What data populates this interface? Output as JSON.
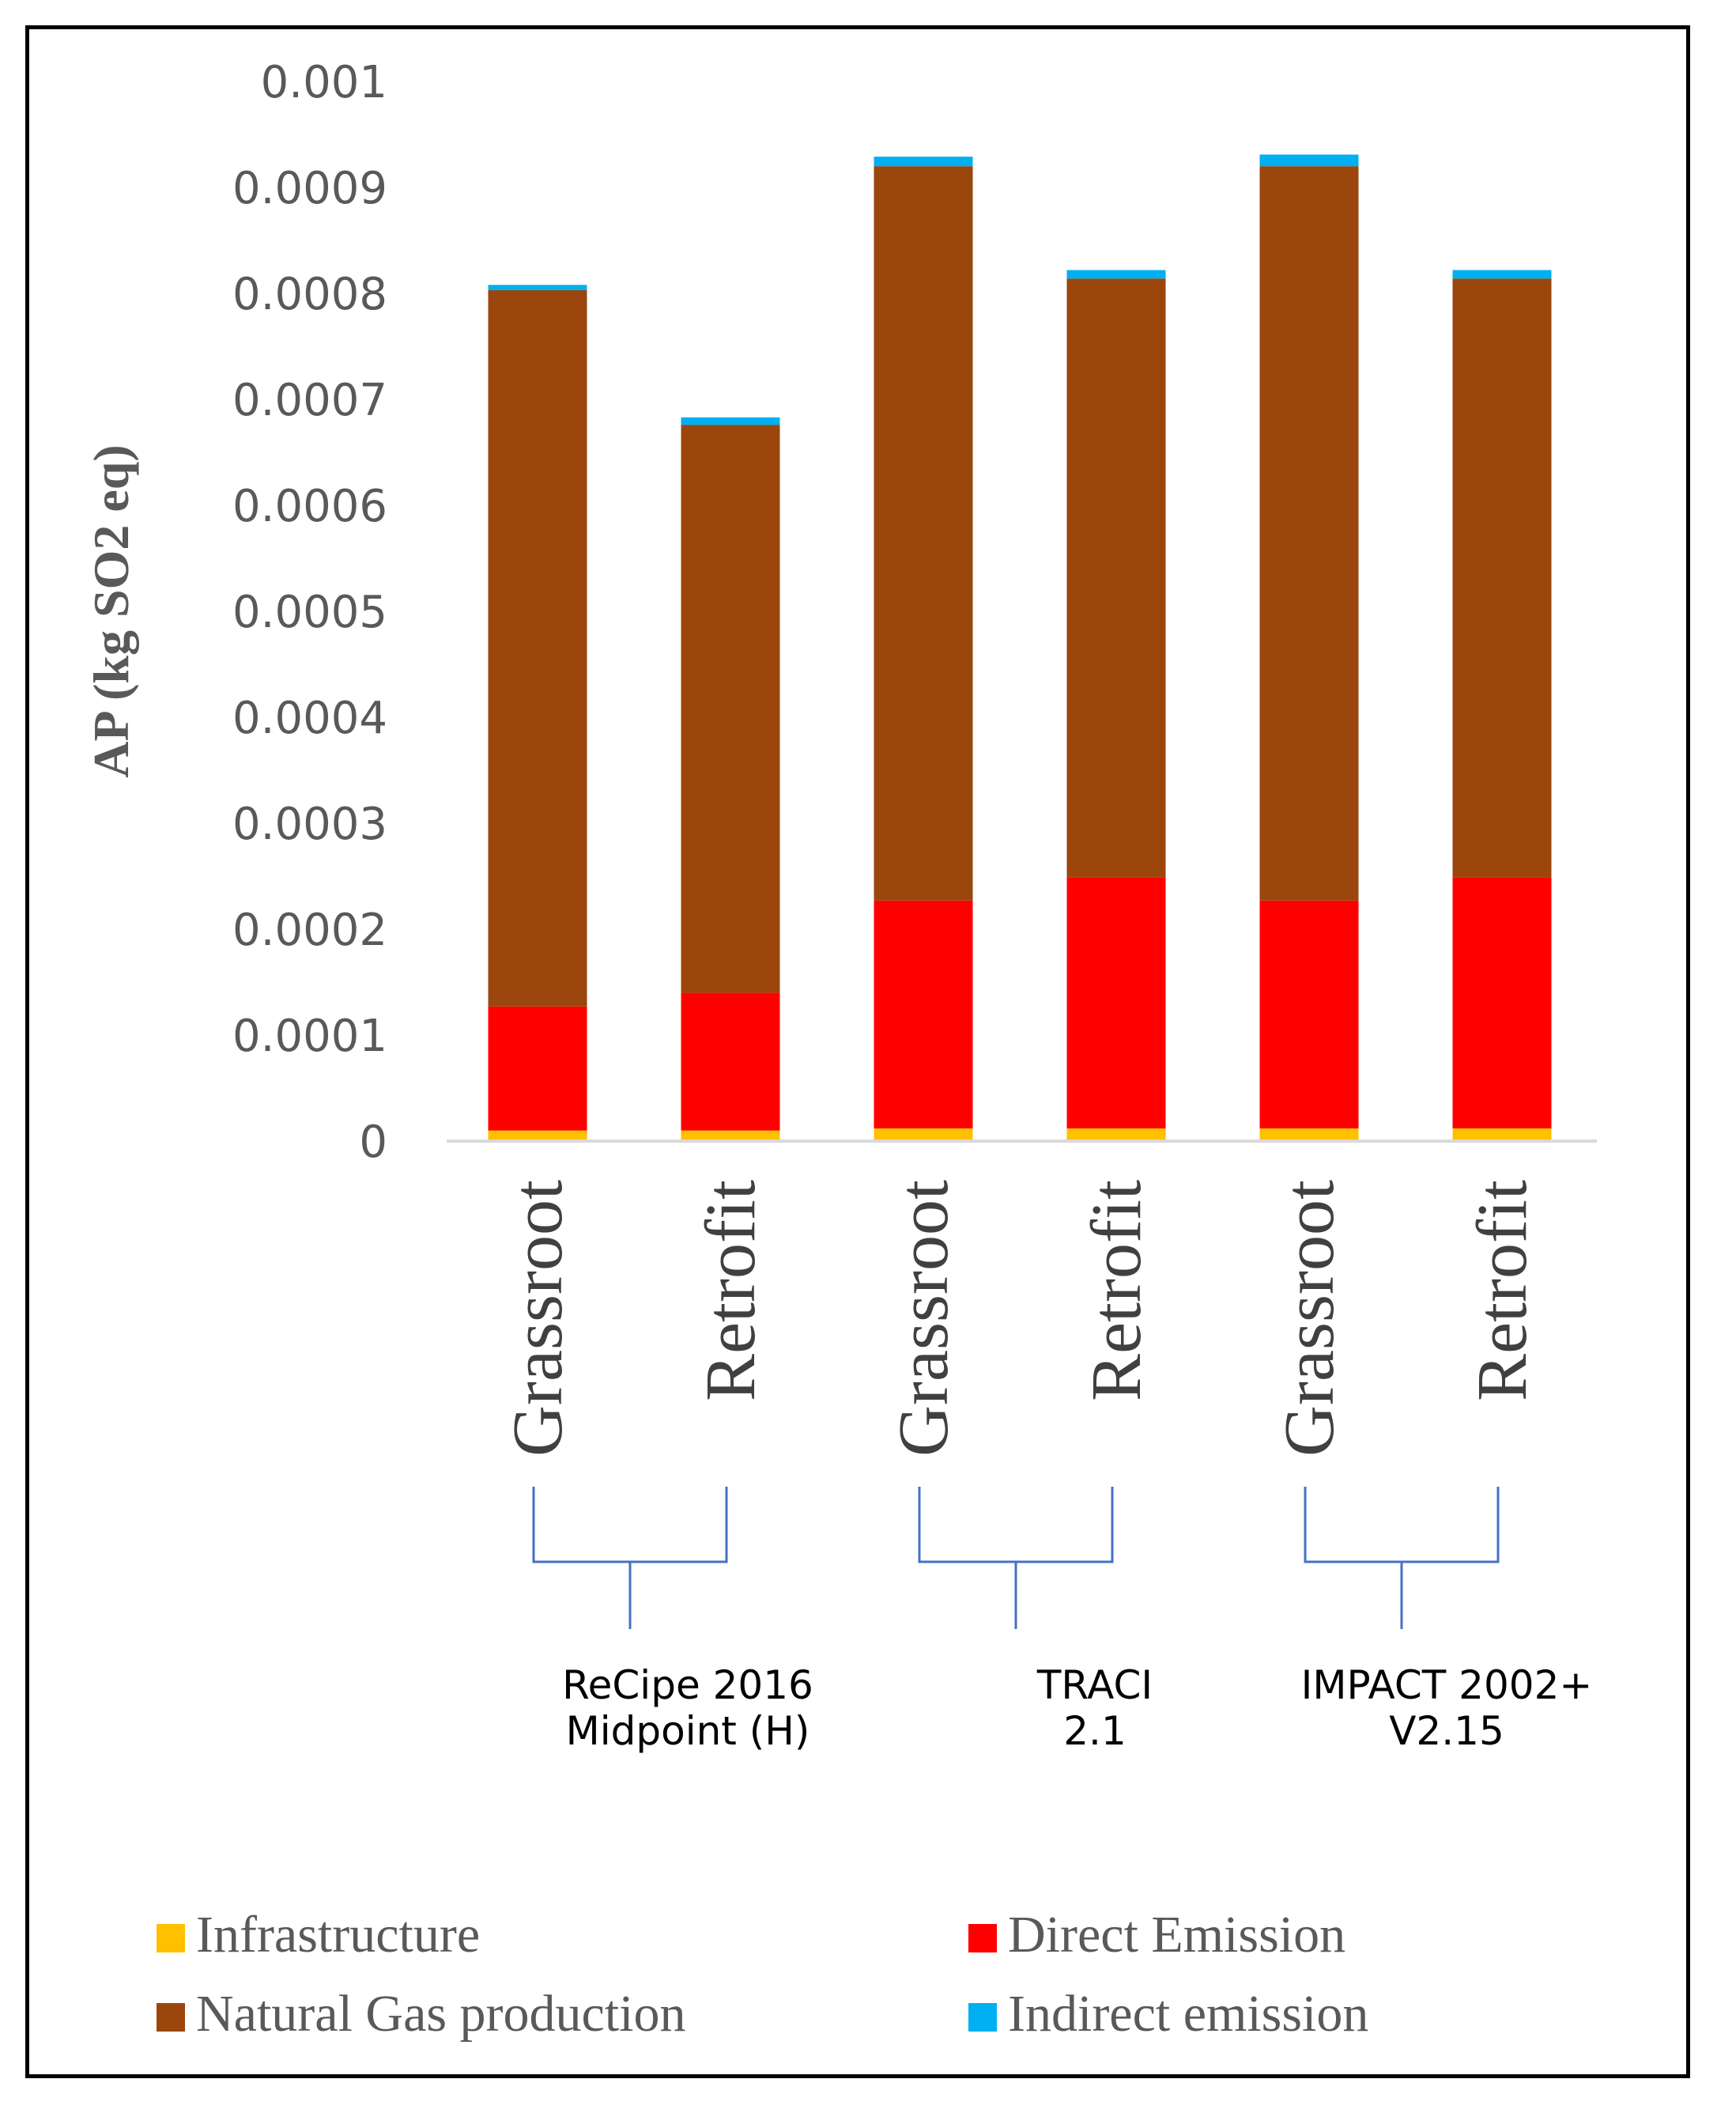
{
  "chart_data": {
    "type": "bar",
    "stacked": true,
    "title": "",
    "xlabel": "",
    "ylabel": "AP (kg SO2 eq)",
    "ylim": [
      0,
      0.001
    ],
    "yticks": [
      "0",
      "0.0001",
      "0.0002",
      "0.0003",
      "0.0004",
      "0.0005",
      "0.0006",
      "0.0007",
      "0.0008",
      "0.0009",
      "0.001"
    ],
    "categories": [
      "Grassroot",
      "Retrofit",
      "Grassroot",
      "Retrofit",
      "Grassroot",
      "Retrofit"
    ],
    "groups": [
      {
        "label_lines": [
          "ReCipe 2016",
          "Midpoint (H)"
        ],
        "categories": [
          0,
          1
        ]
      },
      {
        "label_lines": [
          "TRACI",
          "2.1"
        ],
        "categories": [
          2,
          3
        ]
      },
      {
        "label_lines": [
          "IMPACT 2002+",
          "V2.15"
        ],
        "categories": [
          4,
          5
        ]
      }
    ],
    "series": [
      {
        "name": "Infrastructure",
        "color": "#FFC000",
        "values": [
          1e-05,
          1e-05,
          1.2e-05,
          1.2e-05,
          1.2e-05,
          1.2e-05
        ]
      },
      {
        "name": "Direct Emission",
        "color": "#FF0000",
        "values": [
          0.000117,
          0.00013,
          0.000215,
          0.000237,
          0.000215,
          0.000237
        ]
      },
      {
        "name": "Natural Gas production",
        "color": "#9A460C",
        "values": [
          0.000676,
          0.000536,
          0.000693,
          0.000565,
          0.000693,
          0.000565
        ]
      },
      {
        "name": "Indirect emission",
        "color": "#00B0F0",
        "values": [
          5e-06,
          7e-06,
          9e-06,
          8e-06,
          1.1e-05,
          8e-06
        ]
      }
    ],
    "legend_position": "bottom",
    "grid": false
  },
  "colors": {
    "bracket": "#4472C4",
    "axis": "#D9D9D9"
  }
}
